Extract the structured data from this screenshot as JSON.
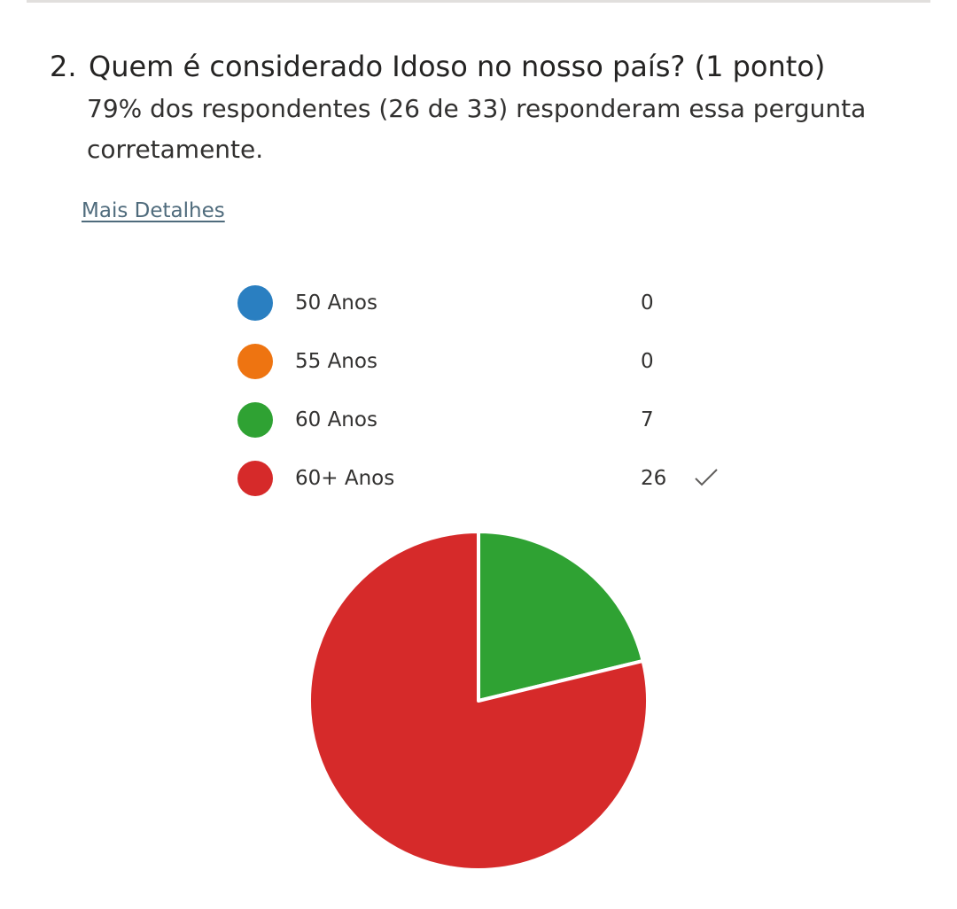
{
  "question": {
    "number": "2.",
    "title": "Quem é considerado Idoso no nosso país? (1 ponto)",
    "stats": "79% dos respondentes (26 de 33) responderam essa pergunta corretamente."
  },
  "details_link": "Mais Detalhes",
  "colors": {
    "blue": "#2a7fc1",
    "orange": "#ee7411",
    "green": "#2fa233",
    "red": "#d62a2a"
  },
  "legend": [
    {
      "label": "50 Anos",
      "count": "0",
      "color": "#2a7fc1",
      "correct": false
    },
    {
      "label": "55 Anos",
      "count": "0",
      "color": "#ee7411",
      "correct": false
    },
    {
      "label": "60 Anos",
      "count": "7",
      "color": "#2fa233",
      "correct": false
    },
    {
      "label": "60+ Anos",
      "count": "26",
      "color": "#d62a2a",
      "correct": true,
      "icon": "check-icon"
    }
  ],
  "chart_data": {
    "type": "pie",
    "categories": [
      "50 Anos",
      "55 Anos",
      "60 Anos",
      "60+ Anos"
    ],
    "values": [
      0,
      0,
      7,
      26
    ],
    "colors": [
      "#2a7fc1",
      "#ee7411",
      "#2fa233",
      "#d62a2a"
    ],
    "legend": "top"
  }
}
